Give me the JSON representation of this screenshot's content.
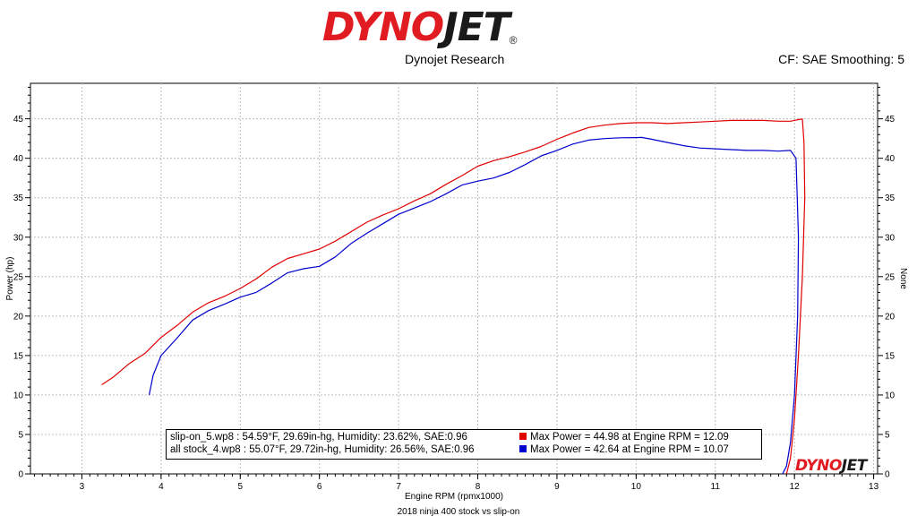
{
  "header": {
    "logo_dyno": "DYNO",
    "logo_jet": "JET",
    "logo_reg": "®",
    "company": "Dynojet Research",
    "cf": "CF: SAE Smoothing: 5"
  },
  "footer_logo": {
    "dyno": "DYNO",
    "jet": "JET"
  },
  "colors": {
    "run1": "#e00000",
    "run2": "#0000cc",
    "grid": "#bfbfbf",
    "logo_red": "#e11b22"
  },
  "legend": {
    "rows": [
      {
        "info": "slip-on_5.wp8    : 54.59°F, 29.69in-hg, Humidity: 23.62%, SAE:0.96",
        "max": "Max Power = 44.98 at Engine RPM = 12.09",
        "color": "#e00000"
      },
      {
        "info": "all stock_4.wp8 : 55.07°F, 29.72in-hg, Humidity: 26.56%, SAE:0.96",
        "max": "Max Power = 42.64 at Engine RPM = 10.07",
        "color": "#0000cc"
      }
    ]
  },
  "chart_data": {
    "type": "line",
    "title": "2018 ninja 400 stock vs slip-on",
    "xlabel": "Engine RPM (rpmx1000)",
    "ylabel": "Power (hp)",
    "y2label": "None",
    "xlim": [
      2.35,
      13.05
    ],
    "ylim": [
      0,
      49.5
    ],
    "xticks": [
      3,
      4,
      5,
      6,
      7,
      8,
      9,
      10,
      11,
      12,
      13
    ],
    "yticks": [
      0,
      5,
      10,
      15,
      20,
      25,
      30,
      35,
      40,
      45
    ],
    "grid": true,
    "series": [
      {
        "name": "slip-on_5.wp8",
        "color": "#e00000",
        "x": [
          3.25,
          3.4,
          3.6,
          3.8,
          3.9,
          4.0,
          4.2,
          4.4,
          4.6,
          4.8,
          5.0,
          5.2,
          5.4,
          5.6,
          5.8,
          6.0,
          6.2,
          6.4,
          6.6,
          6.8,
          7.0,
          7.2,
          7.4,
          7.6,
          7.8,
          8.0,
          8.2,
          8.4,
          8.6,
          8.8,
          9.0,
          9.2,
          9.4,
          9.6,
          9.8,
          10.0,
          10.2,
          10.4,
          10.6,
          10.8,
          11.0,
          11.2,
          11.4,
          11.6,
          11.8,
          11.95,
          12.05,
          12.1,
          12.12,
          12.13,
          12.1,
          12.05,
          12.0,
          11.95,
          11.9
        ],
        "y": [
          11.3,
          12.3,
          14.0,
          15.3,
          16.3,
          17.3,
          18.8,
          20.5,
          21.7,
          22.5,
          23.5,
          24.7,
          26.2,
          27.3,
          27.9,
          28.5,
          29.5,
          30.7,
          31.9,
          32.8,
          33.6,
          34.6,
          35.5,
          36.7,
          37.8,
          39.0,
          39.7,
          40.2,
          40.8,
          41.5,
          42.4,
          43.2,
          43.9,
          44.2,
          44.4,
          44.5,
          44.5,
          44.4,
          44.5,
          44.6,
          44.7,
          44.8,
          44.8,
          44.8,
          44.7,
          44.7,
          44.9,
          44.98,
          42.0,
          35.0,
          25.0,
          15.0,
          7.0,
          2.0,
          0.0
        ]
      },
      {
        "name": "all stock_4.wp8",
        "color": "#0000cc",
        "x": [
          3.85,
          3.9,
          4.0,
          4.2,
          4.4,
          4.6,
          4.8,
          5.0,
          5.2,
          5.4,
          5.6,
          5.8,
          6.0,
          6.2,
          6.4,
          6.6,
          6.8,
          7.0,
          7.2,
          7.4,
          7.6,
          7.8,
          8.0,
          8.2,
          8.4,
          8.6,
          8.8,
          9.0,
          9.2,
          9.4,
          9.6,
          9.8,
          10.0,
          10.07,
          10.2,
          10.4,
          10.6,
          10.8,
          11.0,
          11.2,
          11.4,
          11.6,
          11.8,
          11.95,
          12.02,
          12.05,
          12.04,
          12.0,
          11.95,
          11.9,
          11.85
        ],
        "y": [
          10.0,
          12.5,
          15.0,
          17.2,
          19.5,
          20.7,
          21.5,
          22.4,
          23.0,
          24.2,
          25.5,
          26.0,
          26.3,
          27.5,
          29.2,
          30.5,
          31.7,
          32.9,
          33.7,
          34.5,
          35.5,
          36.6,
          37.1,
          37.5,
          38.2,
          39.2,
          40.3,
          41.0,
          41.8,
          42.3,
          42.5,
          42.6,
          42.62,
          42.64,
          42.4,
          42.0,
          41.6,
          41.3,
          41.2,
          41.1,
          41.0,
          41.0,
          40.9,
          41.0,
          40.0,
          30.0,
          20.0,
          10.0,
          4.0,
          1.0,
          0.0
        ]
      }
    ]
  }
}
